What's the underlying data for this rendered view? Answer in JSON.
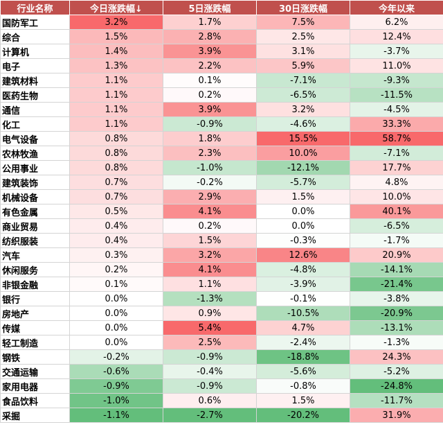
{
  "table": {
    "columns": [
      "行业名称",
      "今日涨跌幅↓",
      "5日涨跌幅",
      "30日涨跌幅",
      "今年以来"
    ],
    "rows": [
      {
        "name": "国防军工",
        "values": [
          3.2,
          1.7,
          7.5,
          6.2
        ]
      },
      {
        "name": "综合",
        "values": [
          1.5,
          2.8,
          2.5,
          12.4
        ]
      },
      {
        "name": "计算机",
        "values": [
          1.4,
          3.9,
          3.1,
          -3.7
        ]
      },
      {
        "name": "电子",
        "values": [
          1.3,
          2.2,
          5.9,
          11.0
        ]
      },
      {
        "name": "建筑材料",
        "values": [
          1.1,
          0.1,
          -7.1,
          -9.3
        ]
      },
      {
        "name": "医药生物",
        "values": [
          1.1,
          0.2,
          -6.5,
          -11.5
        ]
      },
      {
        "name": "通信",
        "values": [
          1.1,
          3.9,
          3.2,
          -4.5
        ]
      },
      {
        "name": "化工",
        "values": [
          1.1,
          -0.9,
          -4.6,
          33.3
        ]
      },
      {
        "name": "电气设备",
        "values": [
          0.8,
          1.8,
          15.5,
          58.7
        ]
      },
      {
        "name": "农林牧渔",
        "values": [
          0.8,
          2.3,
          10.0,
          -7.1
        ]
      },
      {
        "name": "公用事业",
        "values": [
          0.8,
          -1.0,
          -12.1,
          17.7
        ]
      },
      {
        "name": "建筑装饰",
        "values": [
          0.7,
          -0.2,
          -5.7,
          4.8
        ]
      },
      {
        "name": "机械设备",
        "values": [
          0.7,
          2.9,
          1.5,
          10.0
        ]
      },
      {
        "name": "有色金属",
        "values": [
          0.5,
          4.1,
          0.0,
          40.1
        ]
      },
      {
        "name": "商业贸易",
        "values": [
          0.4,
          0.2,
          0.0,
          -6.5
        ]
      },
      {
        "name": "纺织服装",
        "values": [
          0.4,
          1.5,
          -0.3,
          -1.7
        ]
      },
      {
        "name": "汽车",
        "values": [
          0.3,
          3.2,
          12.6,
          20.9
        ]
      },
      {
        "name": "休闲服务",
        "values": [
          0.2,
          4.1,
          -4.8,
          -14.1
        ]
      },
      {
        "name": "非银金融",
        "values": [
          0.1,
          1.1,
          -3.9,
          -21.4
        ]
      },
      {
        "name": "银行",
        "values": [
          0.0,
          -1.3,
          -0.1,
          -3.8
        ]
      },
      {
        "name": "房地产",
        "values": [
          0.0,
          0.9,
          -10.5,
          -20.9
        ]
      },
      {
        "name": "传媒",
        "values": [
          0.0,
          5.4,
          4.7,
          -13.1
        ]
      },
      {
        "name": "轻工制造",
        "values": [
          0.0,
          2.5,
          -2.4,
          -1.3
        ]
      },
      {
        "name": "钢铁",
        "values": [
          -0.2,
          -0.9,
          -18.8,
          24.3
        ]
      },
      {
        "name": "交通运输",
        "values": [
          -0.6,
          -0.4,
          -5.6,
          -5.2
        ]
      },
      {
        "name": "家用电器",
        "values": [
          -0.9,
          -0.9,
          -0.8,
          -24.8
        ]
      },
      {
        "name": "食品饮料",
        "values": [
          -1.0,
          0.6,
          1.5,
          -11.7
        ]
      },
      {
        "name": "采掘",
        "values": [
          -1.1,
          -2.7,
          -20.2,
          31.9
        ]
      }
    ]
  },
  "colors": {
    "header_bg": "#c0504d",
    "header_text": "#ffffff",
    "positive_max": "#f8696b",
    "negative_max": "#63be7b",
    "neutral": "#ffffff"
  }
}
